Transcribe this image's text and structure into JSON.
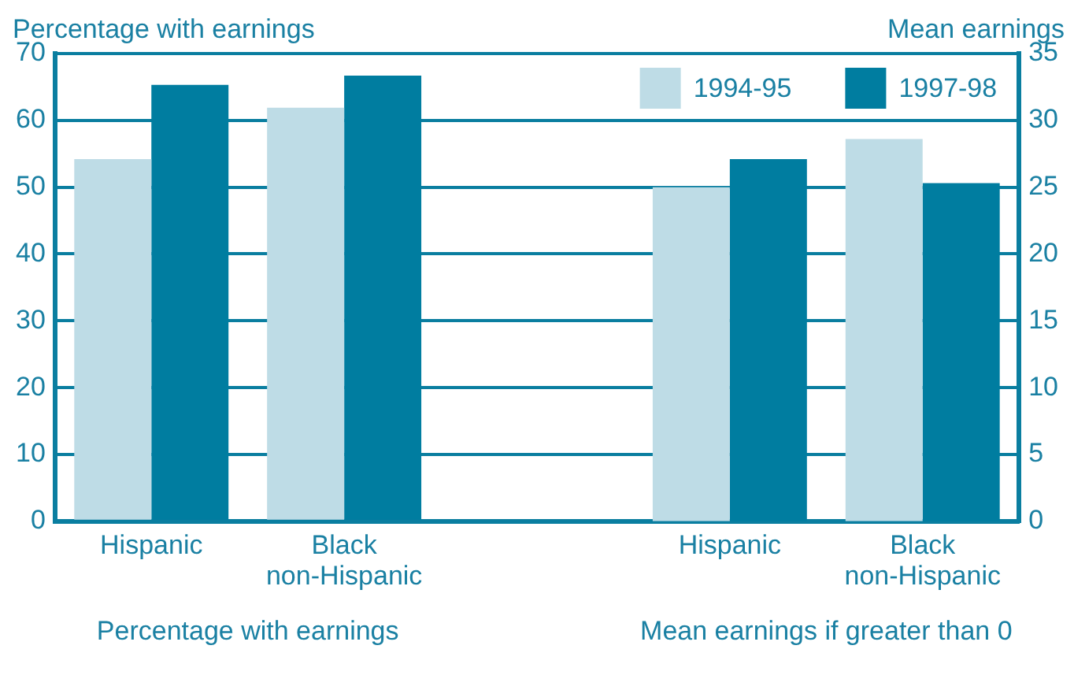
{
  "chart_data": {
    "type": "bar",
    "ylabel": "Percentage with earnings",
    "y2label": "Mean earnings",
    "categories": [
      "Hispanic",
      "Black\nnon-Hispanic",
      null,
      "Hispanic",
      "Black\nnon-Hispanic"
    ],
    "series": [
      {
        "name": "1994-95",
        "color": "#bedce6",
        "values": [
          54.2,
          61.9,
          null,
          null,
          null
        ]
      },
      {
        "name": "1997-98",
        "color": "#007da0",
        "values": [
          65.3,
          66.7,
          null,
          null,
          null
        ]
      },
      {
        "color": "#bedce6",
        "axis": "y2",
        "values": [
          null,
          null,
          null,
          25.0,
          28.6
        ]
      },
      {
        "color": "#007da0",
        "axis": "y2",
        "values": [
          null,
          null,
          null,
          27.1,
          25.3
        ]
      }
    ],
    "ylim": [
      0,
      70
    ],
    "yticks": [
      0,
      10,
      20,
      30,
      40,
      50,
      60,
      70
    ],
    "y2lim": [
      0,
      35
    ],
    "y2ticks": [
      0,
      5,
      10,
      15,
      20,
      25,
      30,
      35
    ],
    "grid": "y",
    "legend": "top right",
    "annotations": [
      "Percentage with earnings",
      "Mean earnings if greater than 0"
    ]
  }
}
